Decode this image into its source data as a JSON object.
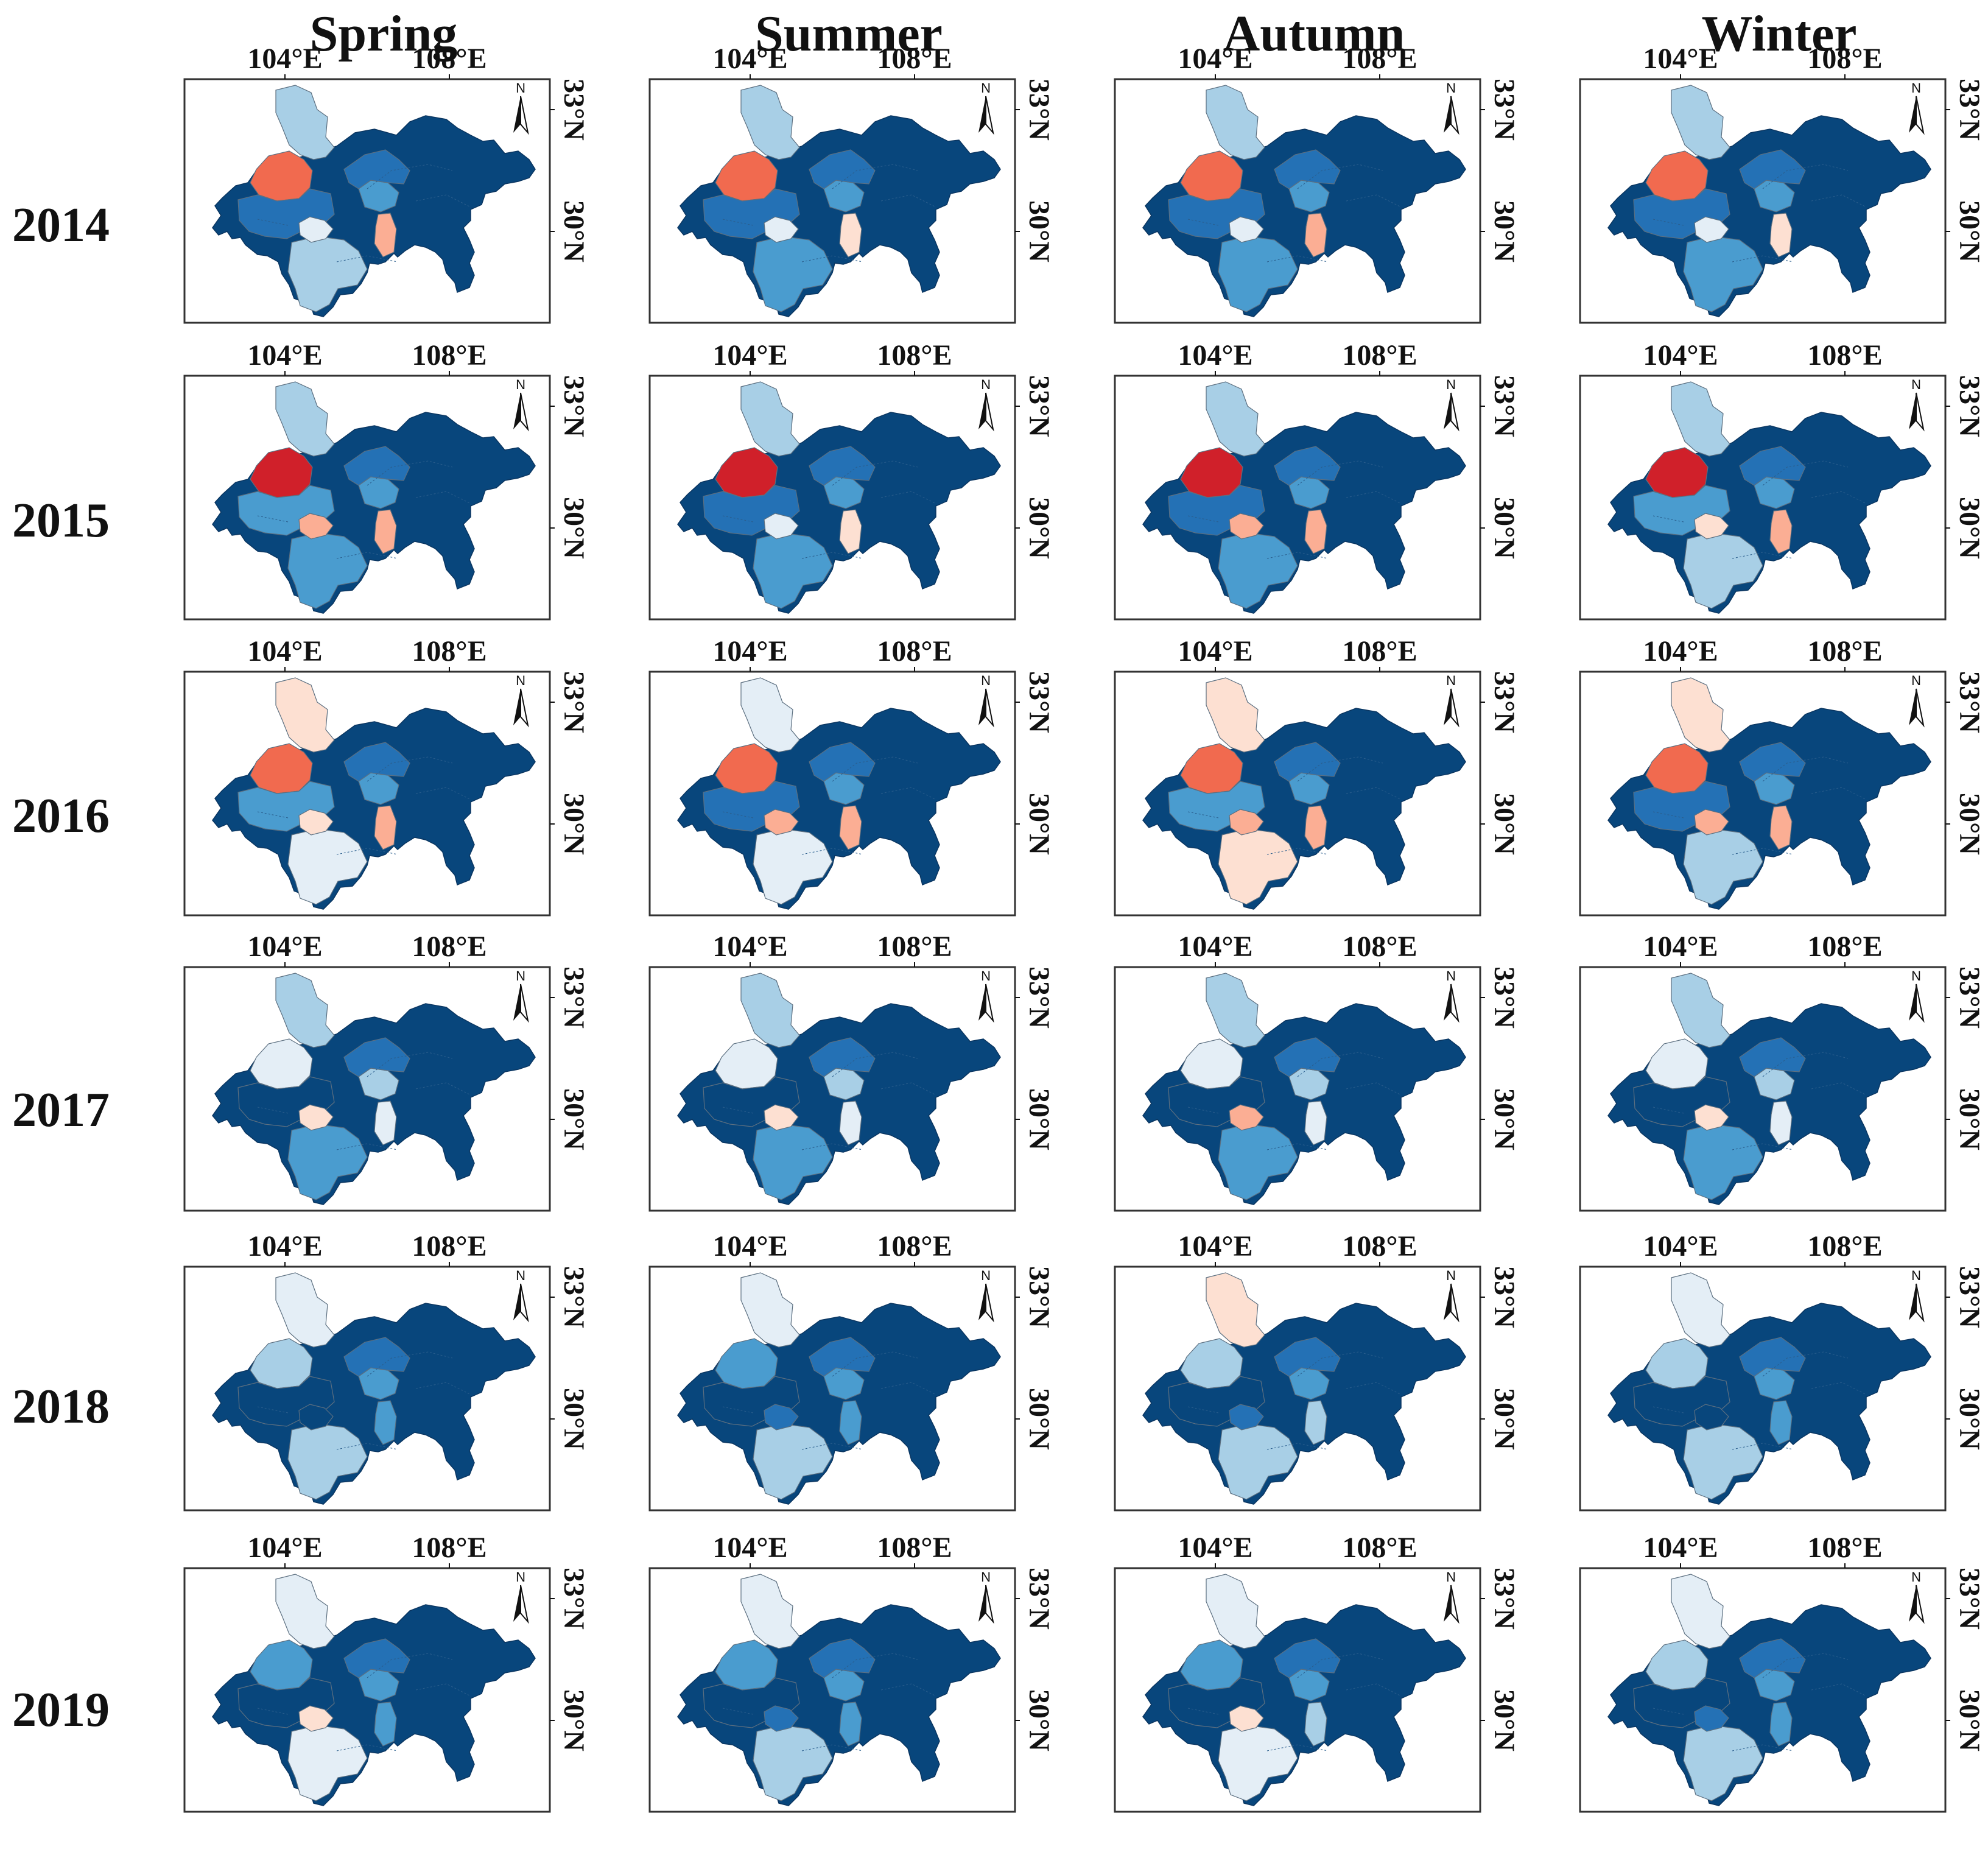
{
  "figure": {
    "seasons": [
      "Spring",
      "Summer",
      "Autumn",
      "Winter"
    ],
    "years": [
      "2014",
      "2015",
      "2016",
      "2017",
      "2018",
      "2019"
    ],
    "lon_ticks": [
      "104°E",
      "108°E"
    ],
    "lat_ticks": [
      "33°N",
      "30°N"
    ],
    "north_label": "N"
  },
  "palette": {
    "c0": "#08467c",
    "c1": "#2471b5",
    "c2": "#4a9ccf",
    "c3": "#a8cfe6",
    "c4": "#e4eef6",
    "c5": "#fde0d2",
    "c6": "#fbae94",
    "c7": "#f16a4f",
    "c8": "#d0202a",
    "background": "#ffffff",
    "frame": "#333333"
  },
  "map_regions": [
    "north_county",
    "sichuan_west",
    "sichuan_center",
    "south_lobe",
    "small_center",
    "east_center",
    "east_small_light",
    "center_east_band"
  ],
  "map_fill_levels": [
    [
      [
        3,
        7,
        1,
        3,
        4,
        2,
        6,
        1
      ],
      [
        3,
        7,
        1,
        2,
        4,
        2,
        5,
        1
      ],
      [
        3,
        7,
        1,
        2,
        4,
        2,
        6,
        1
      ],
      [
        3,
        7,
        1,
        2,
        4,
        2,
        5,
        1
      ]
    ],
    [
      [
        3,
        8,
        2,
        2,
        6,
        2,
        6,
        1
      ],
      [
        3,
        8,
        1,
        2,
        4,
        2,
        5,
        1
      ],
      [
        3,
        8,
        1,
        2,
        6,
        2,
        6,
        1
      ],
      [
        3,
        8,
        2,
        3,
        5,
        2,
        6,
        1
      ]
    ],
    [
      [
        5,
        7,
        2,
        4,
        5,
        2,
        6,
        1
      ],
      [
        4,
        7,
        1,
        4,
        6,
        2,
        6,
        1
      ],
      [
        5,
        7,
        2,
        5,
        6,
        2,
        6,
        1
      ],
      [
        5,
        7,
        1,
        3,
        6,
        2,
        6,
        1
      ]
    ],
    [
      [
        3,
        4,
        0,
        2,
        5,
        3,
        4,
        1
      ],
      [
        3,
        4,
        0,
        2,
        5,
        3,
        4,
        1
      ],
      [
        3,
        4,
        0,
        2,
        6,
        3,
        4,
        1
      ],
      [
        3,
        4,
        0,
        2,
        5,
        3,
        4,
        1
      ]
    ],
    [
      [
        4,
        3,
        0,
        3,
        0,
        2,
        2,
        1
      ],
      [
        4,
        2,
        0,
        3,
        1,
        2,
        2,
        1
      ],
      [
        5,
        3,
        0,
        3,
        1,
        2,
        3,
        1
      ],
      [
        4,
        3,
        0,
        3,
        0,
        2,
        2,
        1
      ]
    ],
    [
      [
        4,
        2,
        0,
        4,
        5,
        2,
        2,
        1
      ],
      [
        4,
        2,
        0,
        3,
        1,
        2,
        2,
        1
      ],
      [
        4,
        2,
        0,
        4,
        5,
        2,
        3,
        1
      ],
      [
        4,
        3,
        0,
        3,
        1,
        2,
        2,
        1
      ]
    ]
  ]
}
